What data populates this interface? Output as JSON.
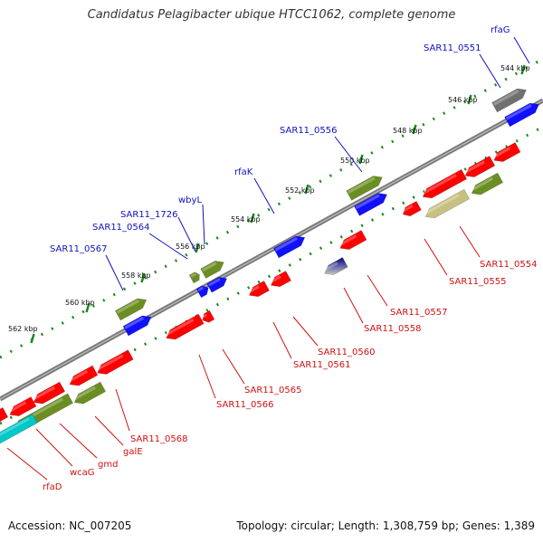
{
  "title": "Candidatus Pelagibacter ubique HTCC1062, complete genome",
  "footer": {
    "accession": "Accession: NC_007205",
    "summary": "Topology: circular; Length: 1,308,759 bp; Genes: 1,389"
  },
  "colors": {
    "backbone": "#808080",
    "forward_label": "#1010c0",
    "reverse_label": "#d01010",
    "tick_dots": "#1a8a1a",
    "gene_red": "#ff0000",
    "gene_olive": "#6b8e23",
    "gene_blue": "#1010ff",
    "gene_gray": "#707070",
    "gene_khaki": "#c8c080",
    "gene_cyan": "#00c8c8",
    "gene_navy": "#000080"
  },
  "ticks": [
    "544 kbp",
    "546 kbp",
    "548 kbp",
    "550 kbp",
    "552 kbp",
    "554 kbp",
    "556 kbp",
    "558 kbp",
    "560 kbp",
    "562 kbp"
  ],
  "forward_labels": [
    "rfaG",
    "SAR11_0551",
    "SAR11_0556",
    "rfaK",
    "wbyL",
    "SAR11_1726",
    "SAR11_0564",
    "SAR11_0567"
  ],
  "reverse_labels": [
    "SAR11_0554",
    "SAR11_0555",
    "SAR11_0557",
    "SAR11_0558",
    "SAR11_0560",
    "SAR11_0561",
    "SAR11_0565",
    "SAR11_0566",
    "SAR11_0568",
    "galE",
    "gmd",
    "wcaG",
    "rfaD"
  ]
}
